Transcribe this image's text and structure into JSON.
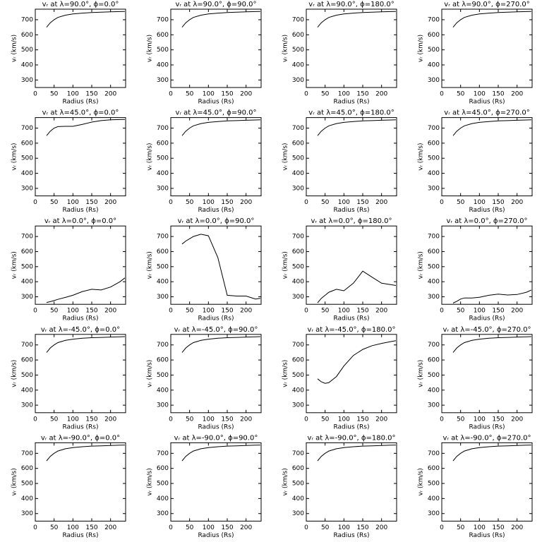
{
  "chart_data": [
    {
      "type": "line",
      "title": "vᵣ at λ=90.0°, ϕ=0.0°",
      "xlabel": "Radius (Rs)",
      "ylabel": "vᵣ (km/s)",
      "xlim": [
        0,
        240
      ],
      "ylim": [
        250,
        770
      ],
      "xticks": [
        0,
        50,
        100,
        150,
        200
      ],
      "yticks": [
        300,
        400,
        500,
        600,
        700
      ],
      "color": "#000000",
      "x": [
        30,
        40,
        50,
        60,
        80,
        100,
        125,
        150,
        175,
        200,
        225,
        238
      ],
      "values": [
        650,
        680,
        700,
        715,
        730,
        738,
        744,
        748,
        750,
        752,
        754,
        755
      ]
    },
    {
      "type": "line",
      "title": "vᵣ at λ=90.0°, ϕ=90.0°",
      "xlabel": "Radius (Rs)",
      "ylabel": "vᵣ (km/s)",
      "xlim": [
        0,
        240
      ],
      "ylim": [
        250,
        770
      ],
      "xticks": [
        0,
        50,
        100,
        150,
        200
      ],
      "yticks": [
        300,
        400,
        500,
        600,
        700
      ],
      "color": "#000000",
      "x": [
        30,
        40,
        50,
        60,
        80,
        100,
        125,
        150,
        175,
        200,
        225,
        238
      ],
      "values": [
        650,
        680,
        700,
        715,
        730,
        738,
        744,
        748,
        750,
        752,
        754,
        755
      ]
    },
    {
      "type": "line",
      "title": "vᵣ at λ=90.0°, ϕ=180.0°",
      "xlabel": "Radius (Rs)",
      "ylabel": "vᵣ (km/s)",
      "xlim": [
        0,
        240
      ],
      "ylim": [
        250,
        770
      ],
      "xticks": [
        0,
        50,
        100,
        150,
        200
      ],
      "yticks": [
        300,
        400,
        500,
        600,
        700
      ],
      "color": "#000000",
      "x": [
        30,
        40,
        50,
        60,
        80,
        100,
        125,
        150,
        175,
        200,
        225,
        238
      ],
      "values": [
        650,
        680,
        700,
        715,
        730,
        738,
        744,
        748,
        750,
        752,
        754,
        755
      ]
    },
    {
      "type": "line",
      "title": "vᵣ at λ=90.0°, ϕ=270.0°",
      "xlabel": "Radius (Rs)",
      "ylabel": "vᵣ (km/s)",
      "xlim": [
        0,
        240
      ],
      "ylim": [
        250,
        770
      ],
      "xticks": [
        0,
        50,
        100,
        150,
        200
      ],
      "yticks": [
        300,
        400,
        500,
        600,
        700
      ],
      "color": "#000000",
      "x": [
        30,
        40,
        50,
        60,
        80,
        100,
        125,
        150,
        175,
        200,
        225,
        238
      ],
      "values": [
        650,
        680,
        700,
        715,
        730,
        738,
        744,
        748,
        750,
        752,
        754,
        755
      ]
    },
    {
      "type": "line",
      "title": "vᵣ at λ=45.0°, ϕ=0.0°",
      "xlabel": "Radius (Rs)",
      "ylabel": "vᵣ (km/s)",
      "xlim": [
        0,
        240
      ],
      "ylim": [
        250,
        770
      ],
      "xticks": [
        0,
        50,
        100,
        150,
        200
      ],
      "yticks": [
        300,
        400,
        500,
        600,
        700
      ],
      "color": "#000000",
      "x": [
        30,
        40,
        50,
        60,
        80,
        100,
        125,
        150,
        175,
        200,
        225,
        238
      ],
      "values": [
        650,
        680,
        700,
        710,
        712,
        712,
        725,
        740,
        750,
        755,
        757,
        758
      ]
    },
    {
      "type": "line",
      "title": "vᵣ at λ=45.0°, ϕ=90.0°",
      "xlabel": "Radius (Rs)",
      "ylabel": "vᵣ (km/s)",
      "xlim": [
        0,
        240
      ],
      "ylim": [
        250,
        770
      ],
      "xticks": [
        0,
        50,
        100,
        150,
        200
      ],
      "yticks": [
        300,
        400,
        500,
        600,
        700
      ],
      "color": "#000000",
      "x": [
        30,
        40,
        50,
        60,
        80,
        100,
        125,
        150,
        175,
        200,
        225,
        238
      ],
      "values": [
        650,
        680,
        700,
        715,
        730,
        738,
        744,
        748,
        750,
        752,
        754,
        755
      ]
    },
    {
      "type": "line",
      "title": "vᵣ at λ=45.0°, ϕ=180.0°",
      "xlabel": "Radius (Rs)",
      "ylabel": "vᵣ (km/s)",
      "xlim": [
        0,
        240
      ],
      "ylim": [
        250,
        770
      ],
      "xticks": [
        0,
        50,
        100,
        150,
        200
      ],
      "yticks": [
        300,
        400,
        500,
        600,
        700
      ],
      "color": "#000000",
      "x": [
        30,
        40,
        50,
        60,
        80,
        100,
        125,
        150,
        175,
        200,
        225,
        238
      ],
      "values": [
        650,
        680,
        700,
        715,
        730,
        738,
        744,
        748,
        750,
        752,
        754,
        755
      ]
    },
    {
      "type": "line",
      "title": "vᵣ at λ=45.0°, ϕ=270.0°",
      "xlabel": "Radius (Rs)",
      "ylabel": "vᵣ (km/s)",
      "xlim": [
        0,
        240
      ],
      "ylim": [
        250,
        770
      ],
      "xticks": [
        0,
        50,
        100,
        150,
        200
      ],
      "yticks": [
        300,
        400,
        500,
        600,
        700
      ],
      "color": "#000000",
      "x": [
        30,
        40,
        50,
        60,
        80,
        100,
        125,
        150,
        175,
        200,
        225,
        238
      ],
      "values": [
        650,
        680,
        700,
        715,
        730,
        738,
        744,
        748,
        750,
        752,
        754,
        755
      ]
    },
    {
      "type": "line",
      "title": "vᵣ at λ=0.0°, ϕ=0.0°",
      "xlabel": "Radius (Rs)",
      "ylabel": "vᵣ (km/s)",
      "xlim": [
        0,
        240
      ],
      "ylim": [
        250,
        770
      ],
      "xticks": [
        0,
        50,
        100,
        150,
        200
      ],
      "yticks": [
        300,
        400,
        500,
        600,
        700
      ],
      "color": "#000000",
      "x": [
        30,
        40,
        50,
        60,
        80,
        100,
        125,
        150,
        175,
        200,
        225,
        238
      ],
      "values": [
        262,
        268,
        275,
        283,
        296,
        310,
        335,
        350,
        345,
        365,
        400,
        425
      ]
    },
    {
      "type": "line",
      "title": "vᵣ at λ=0.0°, ϕ=90.0°",
      "xlabel": "Radius (Rs)",
      "ylabel": "vᵣ (km/s)",
      "xlim": [
        0,
        240
      ],
      "ylim": [
        250,
        770
      ],
      "xticks": [
        0,
        50,
        100,
        150,
        200
      ],
      "yticks": [
        300,
        400,
        500,
        600,
        700
      ],
      "color": "#000000",
      "x": [
        30,
        40,
        50,
        60,
        80,
        100,
        125,
        150,
        175,
        200,
        225,
        238
      ],
      "values": [
        650,
        670,
        685,
        700,
        715,
        705,
        560,
        310,
        305,
        305,
        285,
        290
      ]
    },
    {
      "type": "line",
      "title": "vᵣ at λ=0.0°, ϕ=180.0°",
      "xlabel": "Radius (Rs)",
      "ylabel": "vᵣ (km/s)",
      "xlim": [
        0,
        240
      ],
      "ylim": [
        250,
        770
      ],
      "xticks": [
        0,
        50,
        100,
        150,
        200
      ],
      "yticks": [
        300,
        400,
        500,
        600,
        700
      ],
      "color": "#000000",
      "x": [
        30,
        40,
        50,
        60,
        80,
        100,
        125,
        150,
        175,
        200,
        225,
        238
      ],
      "values": [
        260,
        290,
        310,
        330,
        350,
        340,
        390,
        470,
        430,
        390,
        380,
        375
      ]
    },
    {
      "type": "line",
      "title": "vᵣ at λ=0.0°, ϕ=270.0°",
      "xlabel": "Radius (Rs)",
      "ylabel": "vᵣ (km/s)",
      "xlim": [
        0,
        240
      ],
      "ylim": [
        250,
        770
      ],
      "xticks": [
        0,
        50,
        100,
        150,
        200
      ],
      "yticks": [
        300,
        400,
        500,
        600,
        700
      ],
      "color": "#000000",
      "x": [
        30,
        40,
        50,
        60,
        80,
        100,
        125,
        150,
        175,
        200,
        225,
        238
      ],
      "values": [
        258,
        270,
        285,
        292,
        292,
        297,
        310,
        318,
        312,
        315,
        330,
        345
      ]
    },
    {
      "type": "line",
      "title": "vᵣ at λ=-45.0°, ϕ=0.0°",
      "xlabel": "Radius (Rs)",
      "ylabel": "vᵣ (km/s)",
      "xlim": [
        0,
        240
      ],
      "ylim": [
        250,
        770
      ],
      "xticks": [
        0,
        50,
        100,
        150,
        200
      ],
      "yticks": [
        300,
        400,
        500,
        600,
        700
      ],
      "color": "#000000",
      "x": [
        30,
        40,
        50,
        60,
        80,
        100,
        125,
        150,
        175,
        200,
        225,
        238
      ],
      "values": [
        650,
        680,
        700,
        715,
        730,
        738,
        744,
        748,
        750,
        752,
        754,
        755
      ]
    },
    {
      "type": "line",
      "title": "vᵣ at λ=-45.0°, ϕ=90.0°",
      "xlabel": "Radius (Rs)",
      "ylabel": "vᵣ (km/s)",
      "xlim": [
        0,
        240
      ],
      "ylim": [
        250,
        770
      ],
      "xticks": [
        0,
        50,
        100,
        150,
        200
      ],
      "yticks": [
        300,
        400,
        500,
        600,
        700
      ],
      "color": "#000000",
      "x": [
        30,
        40,
        50,
        60,
        80,
        100,
        125,
        150,
        175,
        200,
        225,
        238
      ],
      "values": [
        650,
        680,
        700,
        715,
        730,
        738,
        744,
        748,
        750,
        752,
        754,
        755
      ]
    },
    {
      "type": "line",
      "title": "vᵣ at λ=-45.0°, ϕ=180.0°",
      "xlabel": "Radius (Rs)",
      "ylabel": "vᵣ (km/s)",
      "xlim": [
        0,
        240
      ],
      "ylim": [
        250,
        770
      ],
      "xticks": [
        0,
        50,
        100,
        150,
        200
      ],
      "yticks": [
        300,
        400,
        500,
        600,
        700
      ],
      "color": "#000000",
      "x": [
        30,
        40,
        50,
        60,
        80,
        100,
        125,
        150,
        175,
        200,
        225,
        238
      ],
      "values": [
        475,
        455,
        445,
        450,
        490,
        560,
        630,
        670,
        695,
        710,
        722,
        728
      ]
    },
    {
      "type": "line",
      "title": "vᵣ at λ=-45.0°, ϕ=270.0°",
      "xlabel": "Radius (Rs)",
      "ylabel": "vᵣ (km/s)",
      "xlim": [
        0,
        240
      ],
      "ylim": [
        250,
        770
      ],
      "xticks": [
        0,
        50,
        100,
        150,
        200
      ],
      "yticks": [
        300,
        400,
        500,
        600,
        700
      ],
      "color": "#000000",
      "x": [
        30,
        40,
        50,
        60,
        80,
        100,
        125,
        150,
        175,
        200,
        225,
        238
      ],
      "values": [
        650,
        680,
        700,
        715,
        730,
        738,
        744,
        748,
        750,
        752,
        754,
        755
      ]
    },
    {
      "type": "line",
      "title": "vᵣ at λ=-90.0°, ϕ=0.0°",
      "xlabel": "Radius (Rs)",
      "ylabel": "vᵣ (km/s)",
      "xlim": [
        0,
        240
      ],
      "ylim": [
        250,
        770
      ],
      "xticks": [
        0,
        50,
        100,
        150,
        200
      ],
      "yticks": [
        300,
        400,
        500,
        600,
        700
      ],
      "color": "#000000",
      "x": [
        30,
        40,
        50,
        60,
        80,
        100,
        125,
        150,
        175,
        200,
        225,
        238
      ],
      "values": [
        650,
        680,
        700,
        715,
        730,
        738,
        744,
        748,
        750,
        752,
        754,
        755
      ]
    },
    {
      "type": "line",
      "title": "vᵣ at λ=-90.0°, ϕ=90.0°",
      "xlabel": "Radius (Rs)",
      "ylabel": "vᵣ (km/s)",
      "xlim": [
        0,
        240
      ],
      "ylim": [
        250,
        770
      ],
      "xticks": [
        0,
        50,
        100,
        150,
        200
      ],
      "yticks": [
        300,
        400,
        500,
        600,
        700
      ],
      "color": "#000000",
      "x": [
        30,
        40,
        50,
        60,
        80,
        100,
        125,
        150,
        175,
        200,
        225,
        238
      ],
      "values": [
        650,
        680,
        700,
        715,
        730,
        738,
        744,
        748,
        750,
        752,
        754,
        755
      ]
    },
    {
      "type": "line",
      "title": "vᵣ at λ=-90.0°, ϕ=180.0°",
      "xlabel": "Radius (Rs)",
      "ylabel": "vᵣ (km/s)",
      "xlim": [
        0,
        240
      ],
      "ylim": [
        250,
        770
      ],
      "xticks": [
        0,
        50,
        100,
        150,
        200
      ],
      "yticks": [
        300,
        400,
        500,
        600,
        700
      ],
      "color": "#000000",
      "x": [
        30,
        40,
        50,
        60,
        80,
        100,
        125,
        150,
        175,
        200,
        225,
        238
      ],
      "values": [
        650,
        680,
        700,
        715,
        730,
        738,
        744,
        748,
        750,
        752,
        754,
        755
      ]
    },
    {
      "type": "line",
      "title": "vᵣ at λ=-90.0°, ϕ=270.0°",
      "xlabel": "Radius (Rs)",
      "ylabel": "vᵣ (km/s)",
      "xlim": [
        0,
        240
      ],
      "ylim": [
        250,
        770
      ],
      "xticks": [
        0,
        50,
        100,
        150,
        200
      ],
      "yticks": [
        300,
        400,
        500,
        600,
        700
      ],
      "color": "#000000",
      "x": [
        30,
        40,
        50,
        60,
        80,
        100,
        125,
        150,
        175,
        200,
        225,
        238
      ],
      "values": [
        650,
        680,
        700,
        715,
        730,
        738,
        744,
        748,
        750,
        752,
        754,
        755
      ]
    }
  ]
}
